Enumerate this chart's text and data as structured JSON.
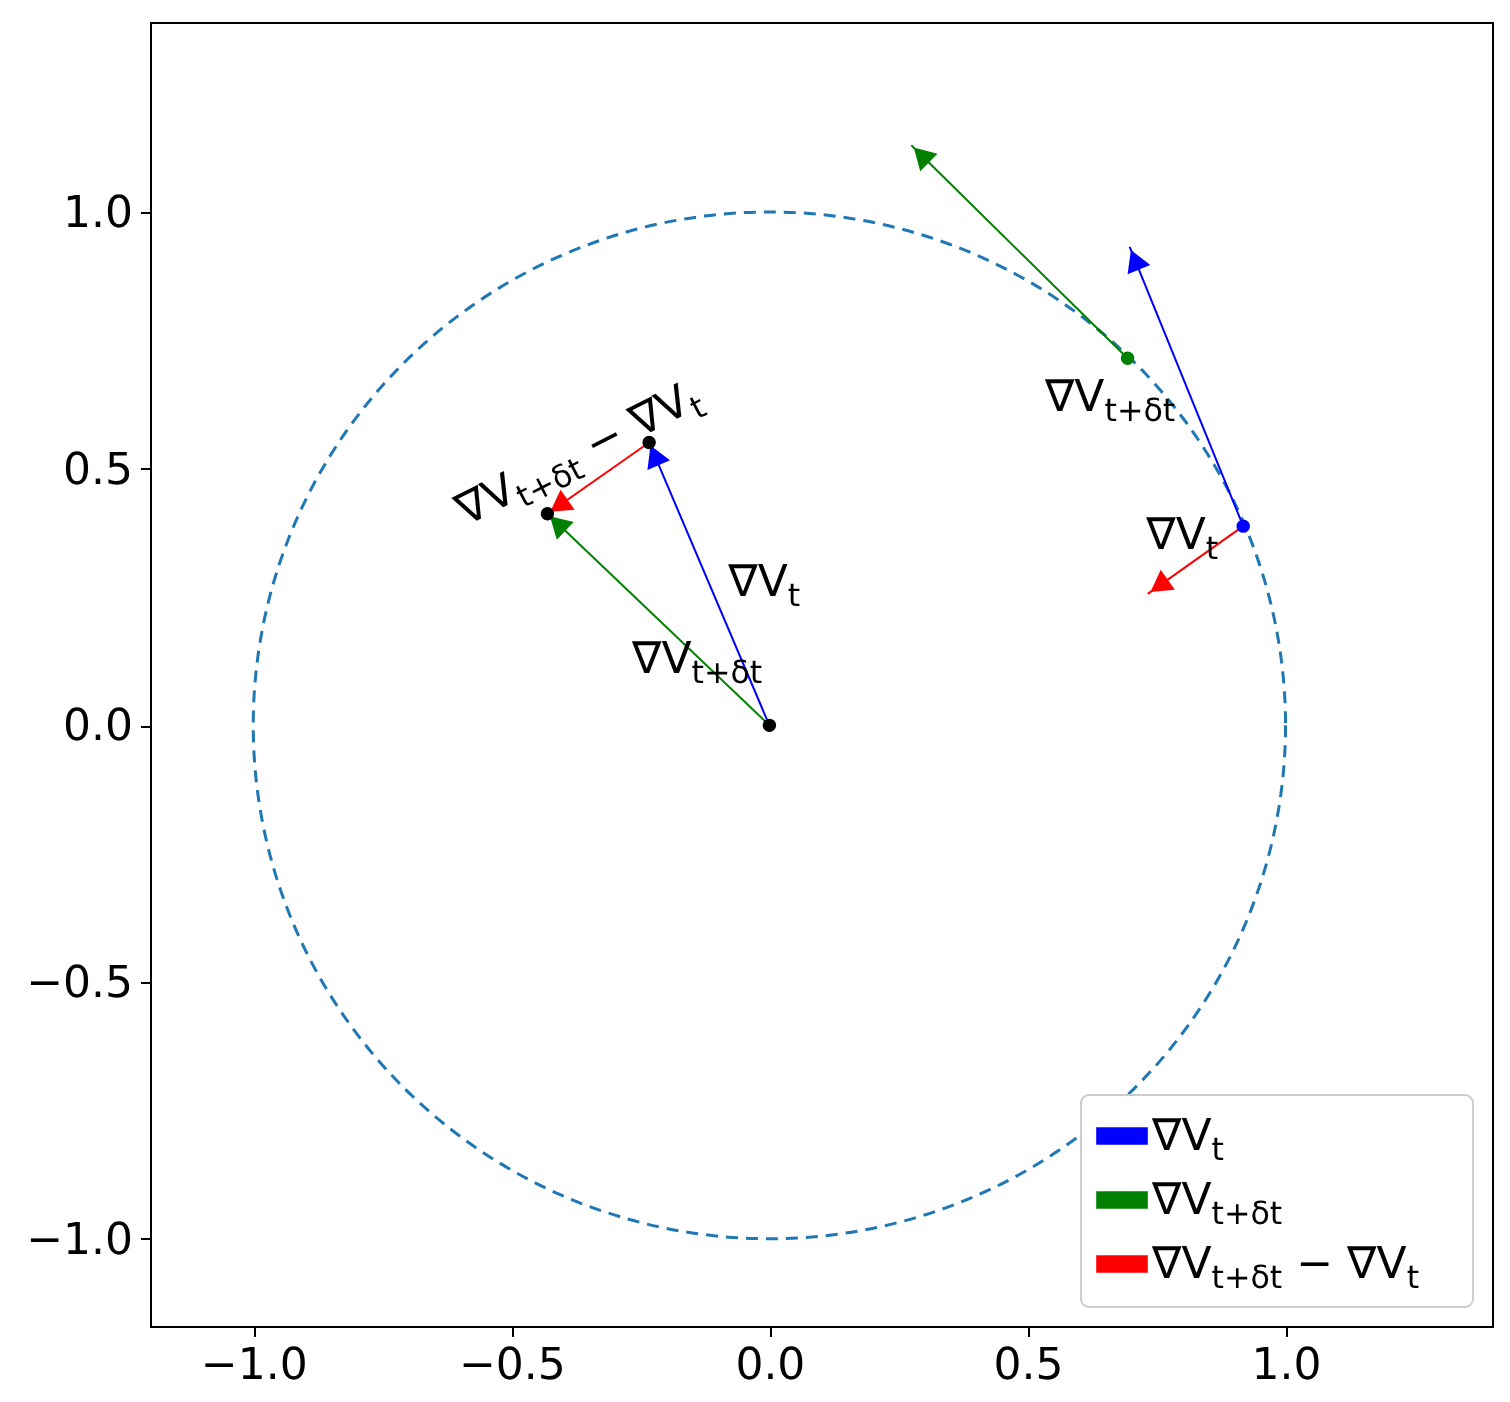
{
  "chart_data": {
    "type": "line",
    "xlim": [
      -1.2,
      1.4
    ],
    "ylim": [
      -1.17,
      1.37
    ],
    "xticks": [
      {
        "value": -1,
        "label": "−1.0"
      },
      {
        "value": -0.5,
        "label": "−0.5"
      },
      {
        "value": 0,
        "label": "0.0"
      },
      {
        "value": 0.5,
        "label": "0.5"
      },
      {
        "value": 1,
        "label": "1.0"
      }
    ],
    "yticks": [
      {
        "value": -1,
        "label": "−1.0"
      },
      {
        "value": -0.5,
        "label": "−0.5"
      },
      {
        "value": 0,
        "label": "0.0"
      },
      {
        "value": 0.5,
        "label": "0.5"
      },
      {
        "value": 1,
        "label": "1.0"
      }
    ],
    "grid": false,
    "legend": "bottom right",
    "series": [
      {
        "name": "∇V$_{t}$",
        "color": "#0000ff",
        "x": [
          0,
          -0.233,
          null,
          0.918,
          0.698
        ],
        "values": [
          0,
          0.551,
          null,
          0.388,
          0.932
        ]
      },
      {
        "name": "∇V$_{t+δt}$",
        "color": "#008000",
        "x": [
          0,
          -0.43,
          null,
          0.694,
          0.275
        ],
        "values": [
          0,
          0.412,
          null,
          0.715,
          1.13
        ]
      },
      {
        "name": "∇V$_{t+δt}$ − ∇V$_{t}$",
        "color": "#ff0000",
        "x": [
          -0.233,
          -0.43,
          null,
          0.918,
          0.733
        ],
        "values": [
          0.551,
          0.412,
          null,
          0.388,
          0.256
        ]
      },
      {
        "type": "scatter",
        "marker": "circle",
        "x": [
          0,
          -0.233,
          -0.43,
          0.918,
          0.694
        ],
        "values": [
          0,
          0.551,
          0.412,
          0.388,
          0.715
        ],
        "colors": [
          "#000000",
          "#000000",
          "#000000",
          "#0000ff",
          "#008000"
        ]
      }
    ],
    "annotations": [
      "∇V$_{t+δt}$ − ∇V$_{t}$",
      "∇V$_{t}$",
      "∇V$_{t+δt}$",
      "∇V$_{t+δt}$",
      "∇V$_{t}$"
    ]
  }
}
